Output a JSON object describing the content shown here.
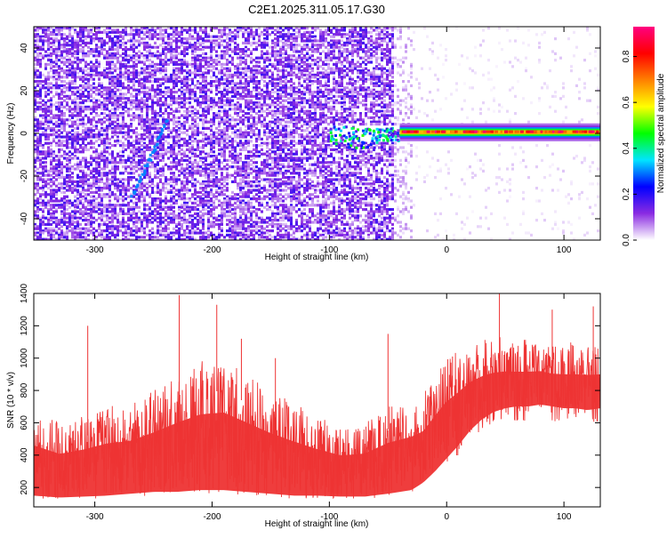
{
  "title": "C2E1.2025.311.05.17.G30",
  "chart_data": [
    {
      "type": "heatmap",
      "xlabel": "Height of straight line (km)",
      "ylabel": "Frequency (Hz)",
      "xlim": [
        -352,
        131
      ],
      "ylim": [
        -50,
        50
      ],
      "x_ticks": [
        {
          "value": -300,
          "label": "-300"
        },
        {
          "value": -200,
          "label": "-200"
        },
        {
          "value": -100,
          "label": "-100"
        },
        {
          "value": 0,
          "label": "0"
        },
        {
          "value": 100,
          "label": "100"
        }
      ],
      "y_ticks": [
        {
          "value": -40,
          "label": "-40"
        },
        {
          "value": -20,
          "label": "-20"
        },
        {
          "value": 0,
          "label": "0"
        },
        {
          "value": 20,
          "label": "20"
        },
        {
          "value": 40,
          "label": "40"
        }
      ],
      "colorbar": {
        "label": "Normalized spectral amplitude",
        "range": [
          0,
          0.93
        ],
        "ticks": [
          {
            "value": 0.0,
            "label": "0.0"
          },
          {
            "value": 0.2,
            "label": "0.2"
          },
          {
            "value": 0.4,
            "label": "0.4"
          },
          {
            "value": 0.6,
            "label": "0.6"
          },
          {
            "value": 0.8,
            "label": "0.8"
          }
        ],
        "colors": [
          "#ffffff",
          "#8a2be2",
          "#0000ff",
          "#00e5ff",
          "#00ff00",
          "#ffff00",
          "#ff8000",
          "#ff0000",
          "#ff0080"
        ]
      },
      "regions": [
        {
          "x_range": [
            -352,
            -45
          ],
          "freq_range": [
            -50,
            50
          ],
          "amplitude": 0.08,
          "description": "broadband noise"
        },
        {
          "x_range": [
            -45,
            131
          ],
          "freq_range": [
            -50,
            50
          ],
          "amplitude": 0.02,
          "description": "sparse weak noise"
        },
        {
          "x_range": [
            -100,
            -60
          ],
          "freq_range": [
            -3,
            3
          ],
          "amplitude": 0.35,
          "description": "onset cluster"
        },
        {
          "x_range": [
            -40,
            131
          ],
          "freq_range": [
            -1.5,
            1.5
          ],
          "amplitude": 0.9,
          "description": "carrier line near 0 Hz"
        }
      ],
      "features": [
        {
          "name": "carrier line",
          "x_start": -40,
          "x_end": 131,
          "frequency": 0.5,
          "peak_amplitude": 0.9
        }
      ]
    },
    {
      "type": "line",
      "xlabel": "Height of straight line (km)",
      "ylabel": "SNR (10 * v/v)",
      "xlim": [
        -352,
        131
      ],
      "ylim": [
        80,
        1400
      ],
      "color": "#ee3333",
      "x_ticks": [
        {
          "value": -300,
          "label": "-300"
        },
        {
          "value": -200,
          "label": "-200"
        },
        {
          "value": -100,
          "label": "-100"
        },
        {
          "value": 0,
          "label": "0"
        },
        {
          "value": 100,
          "label": "100"
        }
      ],
      "y_ticks": [
        {
          "value": 200,
          "label": "200"
        },
        {
          "value": 400,
          "label": "400"
        },
        {
          "value": 600,
          "label": "600"
        },
        {
          "value": 800,
          "label": "800"
        },
        {
          "value": 1000,
          "label": "1000"
        },
        {
          "value": 1200,
          "label": "1200"
        },
        {
          "value": 1400,
          "label": "1400"
        }
      ],
      "x": [
        -352,
        -330,
        -310,
        -290,
        -270,
        -250,
        -230,
        -210,
        -190,
        -170,
        -150,
        -130,
        -110,
        -90,
        -70,
        -50,
        -30,
        -20,
        -10,
        0,
        10,
        20,
        30,
        40,
        50,
        60,
        70,
        80,
        90,
        100,
        110,
        120,
        131
      ],
      "envelope_low": [
        130,
        120,
        125,
        130,
        140,
        150,
        150,
        160,
        160,
        150,
        140,
        130,
        130,
        125,
        125,
        140,
        160,
        200,
        260,
        330,
        400,
        480,
        540,
        580,
        600,
        610,
        610,
        620,
        610,
        600,
        600,
        590,
        600
      ],
      "envelope_high": [
        680,
        600,
        640,
        700,
        720,
        800,
        900,
        980,
        1000,
        900,
        800,
        720,
        640,
        580,
        600,
        700,
        750,
        780,
        900,
        1000,
        1050,
        1100,
        1120,
        1130,
        1130,
        1120,
        1120,
        1120,
        1100,
        1100,
        1100,
        1100,
        1100
      ],
      "peaks": [
        {
          "x": -306,
          "y": 1200
        },
        {
          "x": -228,
          "y": 1390
        },
        {
          "x": -196,
          "y": 1330
        },
        {
          "x": -175,
          "y": 1120
        },
        {
          "x": -146,
          "y": 1000
        },
        {
          "x": -50,
          "y": 1150
        },
        {
          "x": 5,
          "y": 1010
        },
        {
          "x": 45,
          "y": 1400
        },
        {
          "x": 90,
          "y": 1300
        },
        {
          "x": 125,
          "y": 1320
        }
      ]
    }
  ]
}
